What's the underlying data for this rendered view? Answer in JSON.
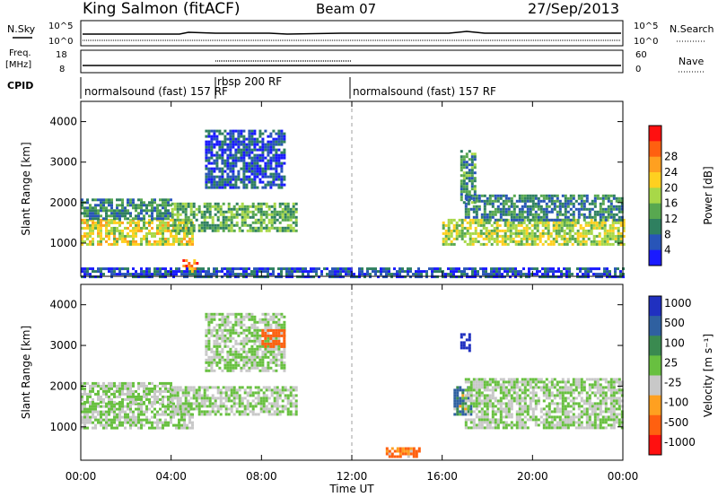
{
  "header": {
    "station": "King Salmon (fitACF)",
    "beam": "Beam 07",
    "date": "27/Sep/2013"
  },
  "top_panels": {
    "nsky_label": "N.Sky",
    "nsearch_label": "N.Search",
    "nsky_ticks": [
      "10^5",
      "10^0"
    ],
    "nsearch_ticks": [
      "10^5",
      "10^0"
    ],
    "freq_label": "Freq.",
    "freq_unit": "[MHz]",
    "freq_ticks": [
      "18",
      "8"
    ],
    "nave_label": "Nave",
    "nave_ticks": [
      "60",
      "0"
    ],
    "cpid_label": "CPID",
    "cpid_segments": [
      {
        "text": "normalsound (fast) 157 RF",
        "start_ut": 0.0
      },
      {
        "text": "rbsp 200 RF",
        "start_ut": 6.0
      },
      {
        "text": "normalsound (fast) 157 RF",
        "start_ut": 12.0
      }
    ]
  },
  "chart_data": [
    {
      "type": "heatmap",
      "name": "power",
      "ylabel": "Slant Range [km]",
      "xlim": [
        0,
        24
      ],
      "ylim": [
        180,
        4500
      ],
      "yticks": [
        "1000",
        "2000",
        "3000",
        "4000"
      ],
      "colorbar_label": "Power [dB]",
      "colorbar_ticks": [
        "4",
        "8",
        "12",
        "16",
        "20",
        "24",
        "28"
      ],
      "colorbar_colors": [
        "#1a1aff",
        "#2855b8",
        "#2f8060",
        "#58a850",
        "#a8d848",
        "#ffd020",
        "#ffa020",
        "#ff6010",
        "#ff1010"
      ],
      "bands": [
        {
          "t0": 0.0,
          "t1": 5.0,
          "r0": 1000,
          "r1": 1600,
          "level": 20
        },
        {
          "t0": 0.0,
          "t1": 4.0,
          "r0": 1600,
          "r1": 2100,
          "level": 10
        },
        {
          "t0": 4.0,
          "t1": 9.5,
          "r0": 1300,
          "r1": 2000,
          "level": 14
        },
        {
          "t0": 4.5,
          "t1": 5.2,
          "r0": 300,
          "r1": 600,
          "level": 28
        },
        {
          "t0": 5.5,
          "t1": 9.0,
          "r0": 2400,
          "r1": 3800,
          "level": 6
        },
        {
          "t0": 16.0,
          "t1": 24.0,
          "r0": 1000,
          "r1": 1600,
          "level": 18
        },
        {
          "t0": 17.0,
          "t1": 24.0,
          "r0": 1600,
          "r1": 2200,
          "level": 10
        },
        {
          "t0": 16.8,
          "t1": 17.5,
          "r0": 2000,
          "r1": 3300,
          "level": 12
        },
        {
          "t0": 0.0,
          "t1": 24.0,
          "r0": 200,
          "r1": 400,
          "level": 6
        }
      ]
    },
    {
      "type": "heatmap",
      "name": "velocity",
      "ylabel": "Slant Range [km]",
      "xlabel": "Time UT",
      "xlim": [
        0,
        24
      ],
      "ylim": [
        180,
        4500
      ],
      "yticks": [
        "1000",
        "2000",
        "3000",
        "4000"
      ],
      "xticks": [
        "00:00",
        "04:00",
        "08:00",
        "12:00",
        "16:00",
        "20:00",
        "00:00"
      ],
      "colorbar_label": "Velocity [m s⁻¹]",
      "colorbar_ticks": [
        "1000",
        "500",
        "100",
        "25",
        "-25",
        "-100",
        "-500",
        "-1000"
      ],
      "colorbar_colors": [
        "#2030c0",
        "#2f60a0",
        "#3a8a50",
        "#68c040",
        "#c8c8c8",
        "#ffa020",
        "#ff6010",
        "#ff1010"
      ],
      "bands": [
        {
          "t0": 0.0,
          "t1": 5.0,
          "r0": 1000,
          "r1": 1600,
          "level": 0
        },
        {
          "t0": 0.0,
          "t1": 4.0,
          "r0": 1600,
          "r1": 2100,
          "level": 0
        },
        {
          "t0": 4.0,
          "t1": 9.5,
          "r0": 1300,
          "r1": 2000,
          "level": 0
        },
        {
          "t0": 5.5,
          "t1": 9.0,
          "r0": 2400,
          "r1": 3800,
          "level": 0
        },
        {
          "t0": 8.0,
          "t1": 9.0,
          "r0": 3000,
          "r1": 3400,
          "level": -300
        },
        {
          "t0": 13.5,
          "t1": 15.0,
          "r0": 300,
          "r1": 500,
          "level": -200
        },
        {
          "t0": 16.5,
          "t1": 17.3,
          "r0": 1300,
          "r1": 2000,
          "level": 150
        },
        {
          "t0": 16.8,
          "t1": 17.2,
          "r0": 2900,
          "r1": 3300,
          "level": 800
        },
        {
          "t0": 17.0,
          "t1": 24.0,
          "r0": 1000,
          "r1": 2200,
          "level": 0
        }
      ]
    }
  ]
}
